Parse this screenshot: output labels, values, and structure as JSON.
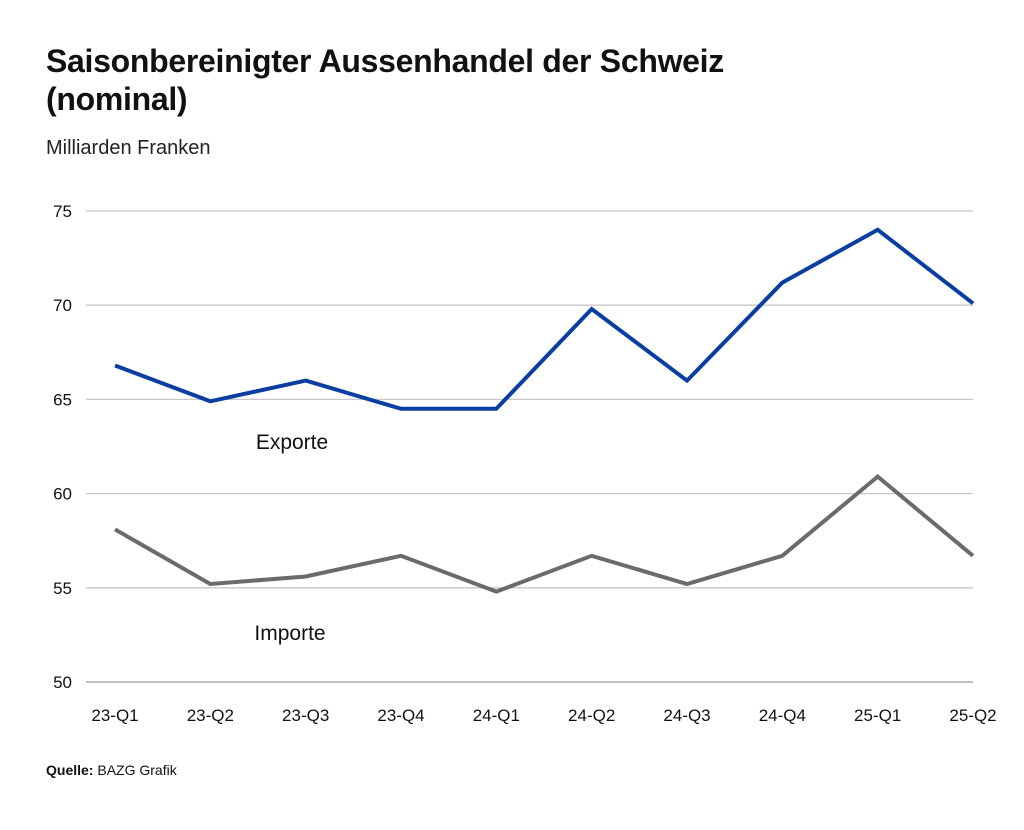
{
  "title": "Saisonbereinigter Aussenhandel der Schweiz (nominal)",
  "subtitle": "Milliarden Franken",
  "source": {
    "label": "Quelle:",
    "text": "BAZG Grafik"
  },
  "colors": {
    "exports": "#0a3ea0",
    "imports": "#6b6b6b",
    "grid": "#c8c8c8",
    "text": "#111111"
  },
  "chart_data": {
    "type": "line",
    "title": "Saisonbereinigter Aussenhandel der Schweiz (nominal)",
    "ylabel": "Milliarden Franken",
    "categories": [
      "23-Q1",
      "23-Q2",
      "23-Q3",
      "23-Q4",
      "24-Q1",
      "24-Q2",
      "24-Q3",
      "24-Q4",
      "25-Q1",
      "25-Q2"
    ],
    "ylim": [
      50,
      75
    ],
    "yticks": [
      50,
      55,
      60,
      65,
      70,
      75
    ],
    "grid": true,
    "series": [
      {
        "name": "Exporte",
        "values": [
          66.8,
          64.9,
          66.0,
          64.5,
          64.5,
          69.8,
          66.0,
          71.2,
          74.0,
          70.1
        ]
      },
      {
        "name": "Importe",
        "values": [
          58.1,
          55.2,
          55.6,
          56.7,
          54.8,
          56.7,
          55.2,
          56.7,
          60.9,
          56.7
        ]
      }
    ]
  }
}
